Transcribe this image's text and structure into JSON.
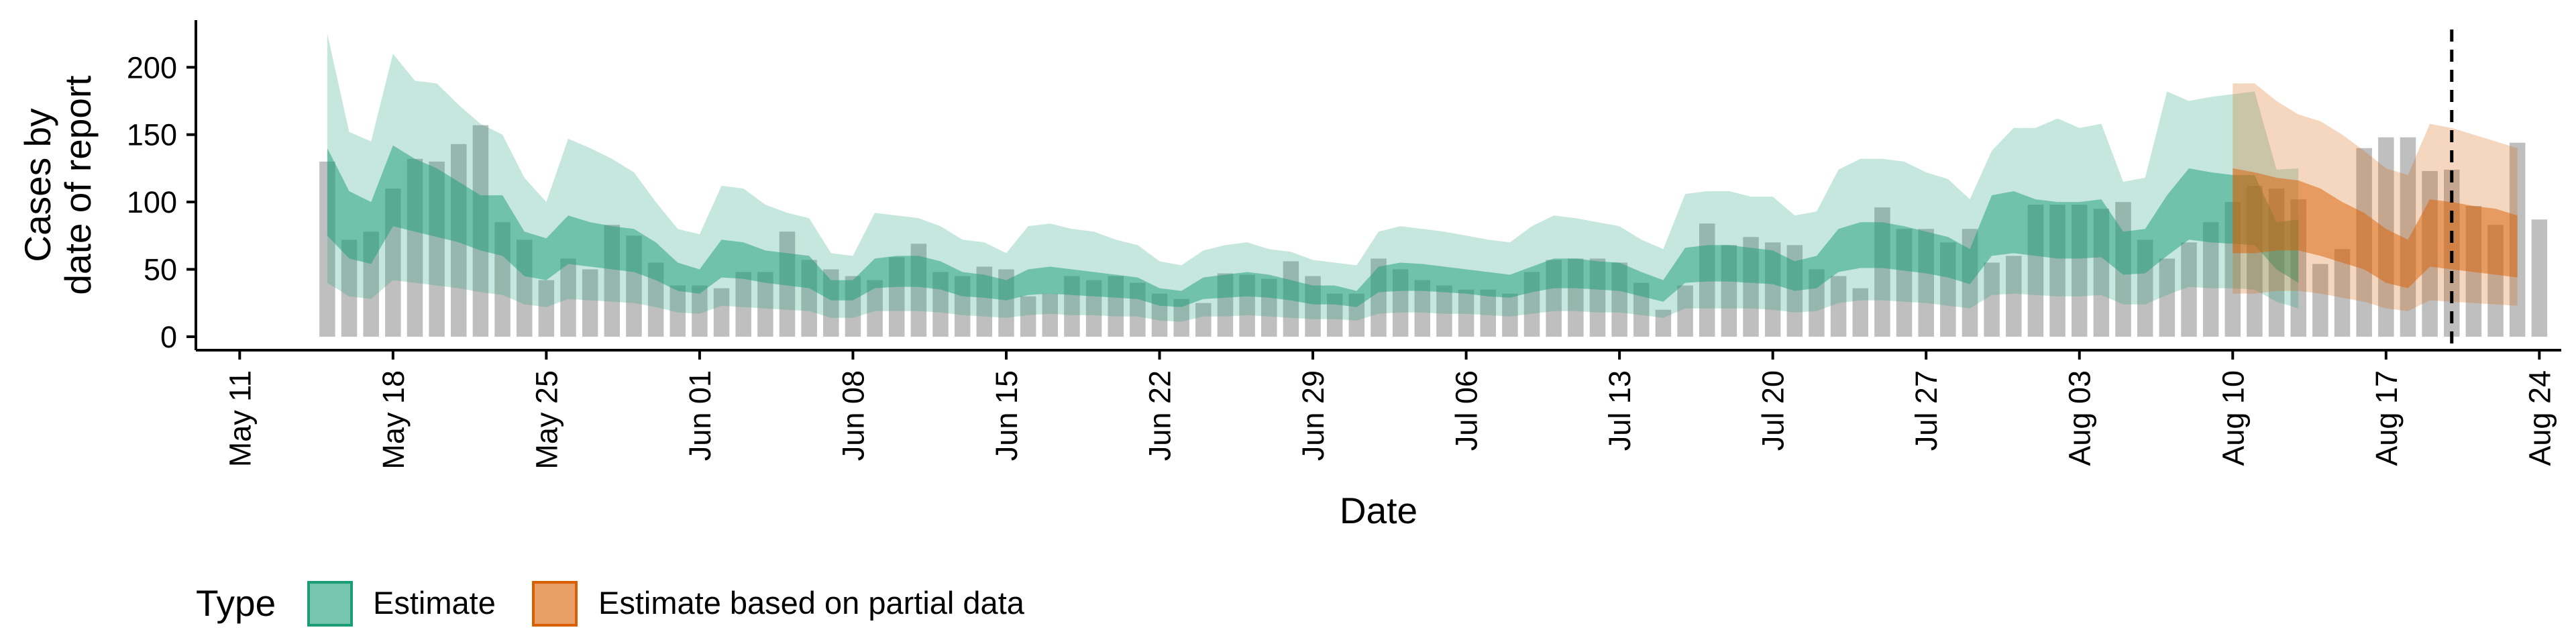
{
  "chart_data": {
    "type": "bar",
    "xlabel": "Date",
    "ylabel_lines": [
      "Cases by",
      "date of report"
    ],
    "x_domain": [
      "2022-05-09",
      "2022-08-25"
    ],
    "ylim": [
      -10,
      235
    ],
    "yticks": [
      0,
      50,
      100,
      150,
      200
    ],
    "xticks": [
      {
        "date": "2022-05-11",
        "label": "May 11"
      },
      {
        "date": "2022-05-18",
        "label": "May 18"
      },
      {
        "date": "2022-05-25",
        "label": "May 25"
      },
      {
        "date": "2022-06-01",
        "label": "Jun 01"
      },
      {
        "date": "2022-06-08",
        "label": "Jun 08"
      },
      {
        "date": "2022-06-15",
        "label": "Jun 15"
      },
      {
        "date": "2022-06-22",
        "label": "Jun 22"
      },
      {
        "date": "2022-06-29",
        "label": "Jun 29"
      },
      {
        "date": "2022-07-06",
        "label": "Jul 06"
      },
      {
        "date": "2022-07-13",
        "label": "Jul 13"
      },
      {
        "date": "2022-07-20",
        "label": "Jul 20"
      },
      {
        "date": "2022-07-27",
        "label": "Jul 27"
      },
      {
        "date": "2022-08-03",
        "label": "Aug 03"
      },
      {
        "date": "2022-08-10",
        "label": "Aug 10"
      },
      {
        "date": "2022-08-17",
        "label": "Aug 17"
      },
      {
        "date": "2022-08-24",
        "label": "Aug 24"
      }
    ],
    "reference_line": "2022-08-20",
    "grid": false,
    "legend": {
      "title": "Type",
      "placement": "bottom-left",
      "items": [
        {
          "label": "Estimate",
          "color": "#1b9e77"
        },
        {
          "label": "Estimate based on partial data",
          "color": "#d95f02"
        }
      ]
    },
    "bars": {
      "color": "#a9a9a9",
      "start_date": "2022-05-15",
      "values": [
        130,
        72,
        78,
        110,
        132,
        130,
        143,
        157,
        85,
        72,
        42,
        58,
        50,
        83,
        75,
        55,
        38,
        38,
        36,
        48,
        48,
        78,
        57,
        50,
        45,
        42,
        59,
        69,
        48,
        45,
        52,
        50,
        30,
        32,
        45,
        42,
        45,
        40,
        32,
        28,
        25,
        47,
        46,
        43,
        56,
        45,
        32,
        32,
        58,
        50,
        42,
        38,
        35,
        35,
        32,
        48,
        57,
        58,
        58,
        55,
        40,
        20,
        38,
        84,
        68,
        74,
        70,
        68,
        50,
        45,
        36,
        96,
        80,
        80,
        70,
        80,
        55,
        60,
        98,
        98,
        98,
        95,
        100,
        72,
        58,
        70,
        85,
        100,
        112,
        110,
        102,
        54,
        65,
        140,
        148,
        148,
        123,
        124,
        97,
        83,
        144,
        87
      ]
    },
    "series": [
      {
        "name": "Estimate",
        "color": "#1b9e77",
        "start_date": "2022-05-15",
        "outer_upper": [
          225,
          152,
          145,
          210,
          190,
          188,
          172,
          158,
          150,
          118,
          100,
          147,
          140,
          132,
          122,
          100,
          80,
          76,
          112,
          110,
          98,
          92,
          88,
          62,
          60,
          92,
          90,
          88,
          82,
          72,
          70,
          62,
          82,
          84,
          80,
          78,
          72,
          68,
          56,
          53,
          64,
          68,
          70,
          65,
          63,
          57,
          55,
          53,
          78,
          82,
          80,
          78,
          75,
          72,
          70,
          82,
          90,
          88,
          85,
          82,
          72,
          65,
          106,
          108,
          108,
          104,
          104,
          90,
          93,
          124,
          132,
          132,
          130,
          122,
          117,
          102,
          138,
          155,
          155,
          162,
          155,
          158,
          115,
          118,
          182,
          175,
          178,
          180,
          182,
          124,
          125
        ],
        "inner_upper": [
          140,
          108,
          100,
          142,
          132,
          125,
          115,
          105,
          105,
          78,
          73,
          90,
          85,
          82,
          80,
          70,
          55,
          50,
          72,
          70,
          64,
          62,
          60,
          42,
          42,
          58,
          60,
          60,
          56,
          48,
          46,
          42,
          50,
          52,
          50,
          48,
          46,
          44,
          36,
          34,
          44,
          46,
          48,
          46,
          42,
          38,
          38,
          34,
          52,
          55,
          54,
          52,
          50,
          48,
          46,
          52,
          58,
          58,
          56,
          55,
          48,
          42,
          66,
          68,
          68,
          66,
          64,
          56,
          60,
          80,
          85,
          85,
          82,
          78,
          74,
          65,
          105,
          108,
          102,
          100,
          100,
          102,
          78,
          80,
          105,
          125,
          122,
          120,
          120,
          85,
          87
        ],
        "inner_lower": [
          75,
          58,
          54,
          82,
          78,
          74,
          70,
          64,
          60,
          45,
          42,
          54,
          52,
          50,
          48,
          42,
          34,
          32,
          44,
          43,
          40,
          38,
          36,
          27,
          27,
          36,
          37,
          37,
          35,
          30,
          29,
          27,
          31,
          32,
          31,
          30,
          29,
          28,
          23,
          22,
          28,
          29,
          30,
          29,
          27,
          24,
          24,
          22,
          33,
          34,
          34,
          33,
          32,
          30,
          29,
          33,
          36,
          36,
          35,
          34,
          30,
          26,
          40,
          41,
          41,
          40,
          39,
          34,
          36,
          48,
          51,
          51,
          49,
          47,
          44,
          39,
          60,
          62,
          60,
          58,
          58,
          59,
          46,
          47,
          60,
          72,
          70,
          69,
          68,
          50,
          40
        ],
        "outer_lower": [
          40,
          30,
          28,
          42,
          40,
          38,
          36,
          33,
          31,
          24,
          22,
          28,
          27,
          26,
          25,
          22,
          18,
          17,
          23,
          22,
          21,
          20,
          19,
          14,
          14,
          19,
          19,
          19,
          18,
          16,
          15,
          14,
          16,
          17,
          16,
          16,
          15,
          15,
          12,
          11,
          15,
          15,
          16,
          15,
          14,
          13,
          13,
          12,
          17,
          18,
          18,
          17,
          17,
          16,
          15,
          17,
          19,
          19,
          18,
          18,
          16,
          14,
          21,
          21,
          21,
          21,
          20,
          18,
          19,
          25,
          27,
          27,
          26,
          25,
          23,
          21,
          31,
          32,
          31,
          30,
          30,
          31,
          24,
          24,
          31,
          37,
          36,
          36,
          35,
          26,
          21
        ]
      },
      {
        "name": "Estimate based on partial data",
        "color": "#d95f02",
        "start_date": "2022-08-10",
        "outer_upper": [
          188,
          188,
          175,
          165,
          160,
          150,
          138,
          125,
          120,
          158,
          155,
          150,
          145,
          140
        ],
        "inner_upper": [
          125,
          122,
          118,
          116,
          110,
          100,
          92,
          80,
          72,
          102,
          100,
          97,
          95,
          90
        ],
        "inner_lower": [
          62,
          62,
          64,
          64,
          60,
          55,
          50,
          40,
          36,
          52,
          50,
          48,
          46,
          44
        ],
        "outer_lower": [
          32,
          32,
          34,
          34,
          32,
          29,
          26,
          21,
          19,
          27,
          26,
          25,
          24,
          23
        ]
      }
    ]
  }
}
